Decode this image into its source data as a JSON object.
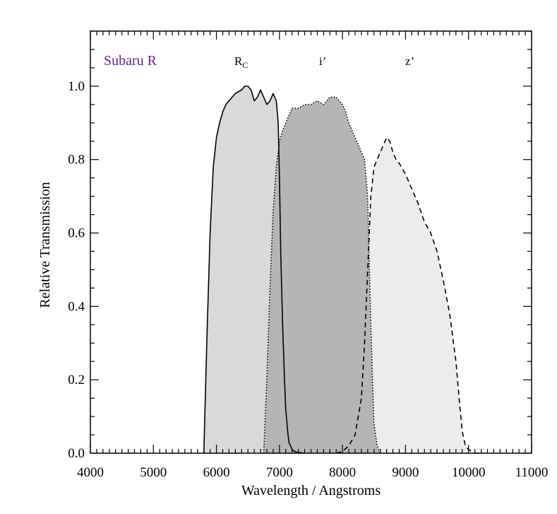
{
  "chart_data": {
    "type": "area",
    "title": "Subaru R",
    "title_color": "#6a1f9a",
    "xlabel": "Wavelength / Angstroms",
    "ylabel": "Relative Transmission",
    "xlim": [
      4000,
      11000
    ],
    "ylim": [
      0.0,
      1.15
    ],
    "xticks": [
      4000,
      5000,
      6000,
      7000,
      8000,
      9000,
      10000,
      11000
    ],
    "yticks": [
      "0.0",
      "0.2",
      "0.4",
      "0.6",
      "0.8",
      "1.0"
    ],
    "grid": false,
    "series": [
      {
        "name": "R",
        "subscript": "C",
        "line_style": "solid",
        "fill": "#d9d9d9",
        "x": [
          5800,
          5850,
          5900,
          5950,
          6000,
          6050,
          6100,
          6150,
          6200,
          6300,
          6400,
          6450,
          6500,
          6550,
          6600,
          6650,
          6700,
          6750,
          6800,
          6850,
          6900,
          6950,
          6980,
          7000,
          7020,
          7050,
          7080,
          7100,
          7130,
          7150,
          7200,
          7250,
          7300,
          7400
        ],
        "values": [
          0.0,
          0.32,
          0.6,
          0.78,
          0.86,
          0.9,
          0.93,
          0.95,
          0.96,
          0.98,
          0.99,
          1.0,
          1.0,
          0.99,
          0.96,
          0.97,
          0.99,
          0.97,
          0.95,
          0.96,
          0.98,
          0.96,
          0.9,
          0.75,
          0.55,
          0.35,
          0.2,
          0.12,
          0.06,
          0.03,
          0.01,
          0.004,
          0.002,
          0.0
        ]
      },
      {
        "name": "i’",
        "line_style": "dotted",
        "fill": "#b5b5b5",
        "x": [
          6750,
          6800,
          6850,
          6900,
          6950,
          7000,
          7050,
          7100,
          7150,
          7200,
          7300,
          7400,
          7500,
          7600,
          7700,
          7800,
          7900,
          8000,
          8050,
          8100,
          8150,
          8200,
          8250,
          8300,
          8350,
          8400,
          8420,
          8450,
          8480,
          8500,
          8550,
          8600
        ],
        "values": [
          0.0,
          0.2,
          0.45,
          0.66,
          0.78,
          0.85,
          0.88,
          0.9,
          0.92,
          0.94,
          0.94,
          0.95,
          0.95,
          0.96,
          0.95,
          0.97,
          0.97,
          0.95,
          0.93,
          0.9,
          0.88,
          0.86,
          0.84,
          0.82,
          0.8,
          0.7,
          0.55,
          0.35,
          0.18,
          0.08,
          0.02,
          0.0
        ]
      },
      {
        "name": "z’",
        "line_style": "dashed",
        "fill": "#ececec",
        "x": [
          7900,
          8000,
          8100,
          8200,
          8300,
          8350,
          8400,
          8450,
          8500,
          8550,
          8600,
          8650,
          8700,
          8750,
          8800,
          8850,
          8900,
          9000,
          9100,
          9200,
          9300,
          9400,
          9500,
          9600,
          9700,
          9800,
          9850,
          9900,
          9950,
          10000,
          10100,
          10200
        ],
        "values": [
          0.0,
          0.005,
          0.02,
          0.05,
          0.15,
          0.3,
          0.5,
          0.7,
          0.78,
          0.8,
          0.82,
          0.84,
          0.86,
          0.85,
          0.82,
          0.8,
          0.79,
          0.76,
          0.72,
          0.68,
          0.63,
          0.6,
          0.55,
          0.47,
          0.38,
          0.25,
          0.15,
          0.06,
          0.02,
          0.01,
          0.0,
          0.0
        ]
      }
    ]
  }
}
